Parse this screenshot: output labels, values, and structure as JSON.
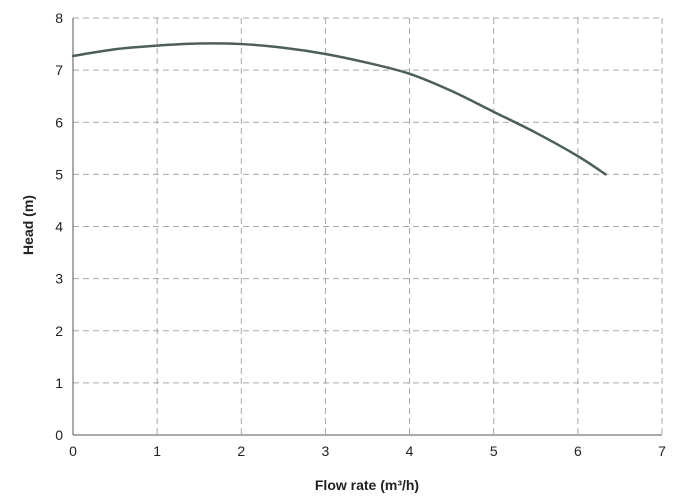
{
  "chart_data": {
    "type": "line",
    "title": "",
    "xlabel": "Flow rate (m³/h)",
    "ylabel": "Head (m)",
    "xlim": [
      0,
      7
    ],
    "ylim": [
      0,
      8
    ],
    "xticks": [
      "0",
      "1",
      "2",
      "3",
      "4",
      "5",
      "6",
      "7"
    ],
    "yticks": [
      "0",
      "1",
      "2",
      "3",
      "4",
      "5",
      "6",
      "7",
      "8"
    ],
    "grid": true,
    "grid_style": "dashed",
    "series": [
      {
        "color": "#4d5f5c",
        "x": [
          0,
          0.5,
          1,
          1.5,
          2,
          2.5,
          3,
          3.5,
          4,
          4.5,
          5,
          5.5,
          6,
          6.33
        ],
        "y": [
          7.27,
          7.4,
          7.47,
          7.51,
          7.5,
          7.43,
          7.31,
          7.14,
          6.93,
          6.6,
          6.2,
          5.8,
          5.35,
          5.0
        ]
      }
    ]
  }
}
